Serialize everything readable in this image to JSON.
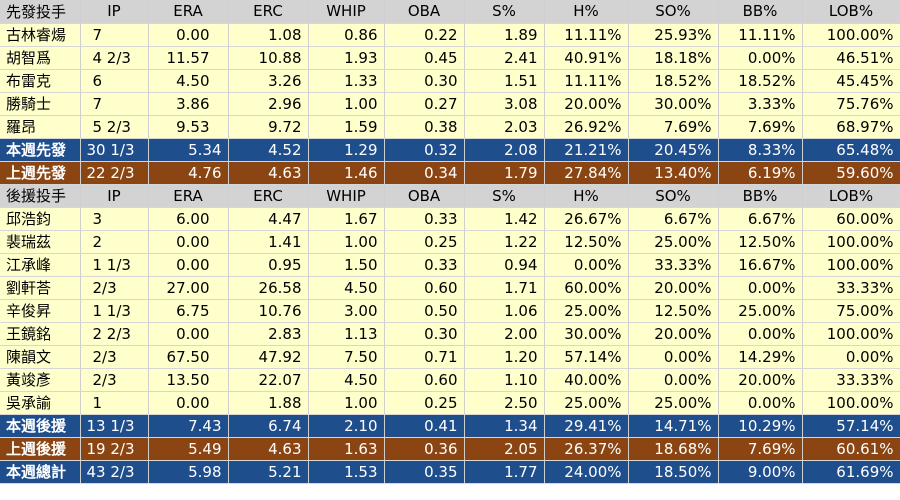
{
  "columns": [
    "IP",
    "ERA",
    "ERC",
    "WHIP",
    "OBA",
    "S%",
    "H%",
    "SO%",
    "BB%",
    "LOB%"
  ],
  "sections": [
    {
      "header": "先發投手",
      "rows": [
        [
          "古林睿煬",
          "7",
          "0.00",
          "1.08",
          "0.86",
          "0.22",
          "1.89",
          "11.11%",
          "25.93%",
          "11.11%",
          "100.00%"
        ],
        [
          "胡智爲",
          "4 2/3",
          "11.57",
          "10.88",
          "1.93",
          "0.45",
          "2.41",
          "40.91%",
          "18.18%",
          "0.00%",
          "46.51%"
        ],
        [
          "布雷克",
          "6",
          "4.50",
          "3.26",
          "1.33",
          "0.30",
          "1.51",
          "11.11%",
          "18.52%",
          "18.52%",
          "45.45%"
        ],
        [
          "勝騎士",
          "7",
          "3.86",
          "2.96",
          "1.00",
          "0.27",
          "3.08",
          "20.00%",
          "30.00%",
          "3.33%",
          "75.76%"
        ],
        [
          "羅昂",
          "5 2/3",
          "9.53",
          "9.72",
          "1.59",
          "0.38",
          "2.03",
          "26.92%",
          "7.69%",
          "7.69%",
          "68.97%"
        ]
      ],
      "summaries": [
        {
          "style": "blue",
          "cells": [
            "本週先發",
            "30 1/3",
            "5.34",
            "4.52",
            "1.29",
            "0.32",
            "2.08",
            "21.21%",
            "20.45%",
            "8.33%",
            "65.48%"
          ]
        },
        {
          "style": "brown",
          "cells": [
            "上週先發",
            "22 2/3",
            "4.76",
            "4.63",
            "1.46",
            "0.34",
            "1.79",
            "27.84%",
            "13.40%",
            "6.19%",
            "59.60%"
          ]
        }
      ]
    },
    {
      "header": "後援投手",
      "rows": [
        [
          "邱浩鈞",
          "3",
          "6.00",
          "4.47",
          "1.67",
          "0.33",
          "1.42",
          "26.67%",
          "6.67%",
          "6.67%",
          "60.00%"
        ],
        [
          "裴瑞茲",
          "2",
          "0.00",
          "1.41",
          "1.00",
          "0.25",
          "1.22",
          "12.50%",
          "25.00%",
          "12.50%",
          "100.00%"
        ],
        [
          "江承峰",
          "1 1/3",
          "0.00",
          "0.95",
          "1.50",
          "0.33",
          "0.94",
          "0.00%",
          "33.33%",
          "16.67%",
          "100.00%"
        ],
        [
          "劉軒荅",
          "2/3",
          "27.00",
          "26.58",
          "4.50",
          "0.60",
          "1.71",
          "60.00%",
          "20.00%",
          "0.00%",
          "33.33%"
        ],
        [
          "辛俊昇",
          "1 1/3",
          "6.75",
          "10.76",
          "3.00",
          "0.50",
          "1.06",
          "25.00%",
          "12.50%",
          "25.00%",
          "75.00%"
        ],
        [
          "王鏡銘",
          "2 2/3",
          "0.00",
          "2.83",
          "1.13",
          "0.30",
          "2.00",
          "30.00%",
          "20.00%",
          "0.00%",
          "100.00%"
        ],
        [
          "陳韻文",
          "2/3",
          "67.50",
          "47.92",
          "7.50",
          "0.71",
          "1.20",
          "57.14%",
          "0.00%",
          "14.29%",
          "0.00%"
        ],
        [
          "黃竣彥",
          "2/3",
          "13.50",
          "22.07",
          "4.50",
          "0.60",
          "1.10",
          "40.00%",
          "0.00%",
          "20.00%",
          "33.33%"
        ],
        [
          "吳承諭",
          "1",
          "0.00",
          "1.88",
          "1.00",
          "0.25",
          "2.50",
          "25.00%",
          "25.00%",
          "0.00%",
          "100.00%"
        ]
      ],
      "summaries": [
        {
          "style": "blue",
          "cells": [
            "本週後援",
            "13 1/3",
            "7.43",
            "6.74",
            "2.10",
            "0.41",
            "1.34",
            "29.41%",
            "14.71%",
            "10.29%",
            "57.14%"
          ]
        },
        {
          "style": "brown",
          "cells": [
            "上週後援",
            "19 2/3",
            "5.49",
            "4.63",
            "1.63",
            "0.36",
            "2.05",
            "26.37%",
            "18.68%",
            "7.69%",
            "60.61%"
          ]
        },
        {
          "style": "blue",
          "cells": [
            "本週總計",
            "43 2/3",
            "5.98",
            "5.21",
            "1.53",
            "0.35",
            "1.77",
            "24.00%",
            "18.50%",
            "9.00%",
            "61.69%"
          ]
        }
      ]
    }
  ],
  "colors": {
    "header_bg": "#d3d3d3",
    "row_bg": "#ffffcc",
    "summary_blue": "#1f4e8c",
    "summary_brown": "#8b4513"
  }
}
